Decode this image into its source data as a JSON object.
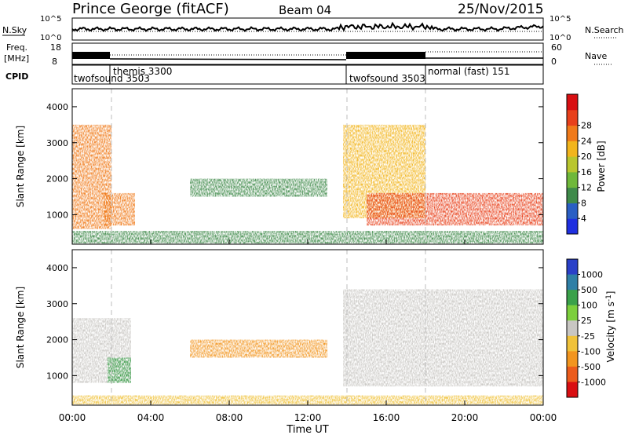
{
  "header": {
    "station": "Prince George (fitACF)",
    "beam": "Beam 04",
    "date": "25/Nov/2015"
  },
  "sky_panel": {
    "left_label": "N.Sky",
    "right_label": "N.Search",
    "tick_top": "10^5",
    "tick_bottom": "10^0",
    "right_tick_top": "10^5",
    "right_tick_bottom": "10^0"
  },
  "freq_panel": {
    "left_label_1": "Freq.",
    "left_label_2": "[MHz]",
    "tick_top": "18",
    "tick_bottom": "8",
    "right_label": "Nave",
    "right_tick_top": "60",
    "right_tick_bottom": "0"
  },
  "cpid_panel": {
    "label": "CPID",
    "modes": [
      {
        "name": "twofsound",
        "id": "3503",
        "start_h": 0.0
      },
      {
        "name": "themis",
        "id": "3300",
        "start_h": 2.0
      },
      {
        "name": "twofsound",
        "id": "3503",
        "start_h": 14.0
      },
      {
        "name": "normal (fast)",
        "id": "151",
        "start_h": 18.0
      }
    ]
  },
  "power_legend": {
    "title": "Power [dB]",
    "ticks": [
      "4",
      "8",
      "12",
      "16",
      "20",
      "24",
      "28"
    ],
    "colors": [
      "#1f2fe0",
      "#2a5fc4",
      "#3f8a4a",
      "#6fb83a",
      "#b9c62e",
      "#f2b51d",
      "#f07a1a",
      "#e8401b",
      "#d80f12"
    ]
  },
  "velocity_legend": {
    "title": "Velocity [m s^-1]",
    "ticks": [
      "1000",
      "500",
      "100",
      "25",
      "-25",
      "-100",
      "-500",
      "-1000"
    ],
    "colors": [
      "#2a40c8",
      "#2f7fa6",
      "#3aa14a",
      "#7ccf3c",
      "#c8c6c2",
      "#f0c23a",
      "#f2951f",
      "#ec5c1c",
      "#d90f12"
    ]
  },
  "axes": {
    "ylabel": "Slant Range [km]",
    "xlabel": "Time UT",
    "xticks": [
      "00:00",
      "04:00",
      "08:00",
      "12:00",
      "16:00",
      "20:00",
      "00:00"
    ],
    "yticks": [
      "1000",
      "2000",
      "3000",
      "4000"
    ]
  },
  "chart_data": [
    {
      "type": "heatmap",
      "title": "Power",
      "x_range_hours": [
        0,
        24
      ],
      "ylim": [
        180,
        4500
      ],
      "ylabel": "Slant Range [km]",
      "colorbar": {
        "label": "Power [dB]",
        "range": [
          0,
          32
        ]
      },
      "mode_boundaries_hours": [
        2.0,
        14.0,
        18.0
      ],
      "regions": [
        {
          "t": [
            0.0,
            2.0
          ],
          "range": [
            600,
            3500
          ],
          "value": 22
        },
        {
          "t": [
            1.6,
            3.2
          ],
          "range": [
            700,
            1600
          ],
          "value": 24
        },
        {
          "t": [
            6.0,
            13.0
          ],
          "range": [
            1500,
            2000
          ],
          "value": 8
        },
        {
          "t": [
            13.8,
            18.0
          ],
          "range": [
            900,
            3500
          ],
          "value": 20
        },
        {
          "t": [
            15.0,
            24.0
          ],
          "range": [
            700,
            1600
          ],
          "value": 26
        },
        {
          "t": [
            0.0,
            24.0
          ],
          "range": [
            200,
            550
          ],
          "value": 10
        }
      ]
    },
    {
      "type": "heatmap",
      "title": "Velocity",
      "x_range_hours": [
        0,
        24
      ],
      "ylim": [
        180,
        4500
      ],
      "ylabel": "Slant Range [km]",
      "xlabel": "Time UT",
      "colorbar": {
        "label": "Velocity [m s^-1]",
        "ticks": [
          1000,
          500,
          100,
          25,
          -25,
          -100,
          -500,
          -1000
        ]
      },
      "regions": [
        {
          "t": [
            0.0,
            3.0
          ],
          "range": [
            800,
            2600
          ],
          "value": 0
        },
        {
          "t": [
            1.8,
            3.0
          ],
          "range": [
            800,
            1500
          ],
          "value": 120
        },
        {
          "t": [
            6.0,
            13.0
          ],
          "range": [
            1500,
            2000
          ],
          "value": -200
        },
        {
          "t": [
            13.8,
            24.0
          ],
          "range": [
            700,
            3400
          ],
          "value": 0
        },
        {
          "t": [
            0.0,
            24.0
          ],
          "range": [
            200,
            450
          ],
          "value": -60
        }
      ]
    }
  ]
}
